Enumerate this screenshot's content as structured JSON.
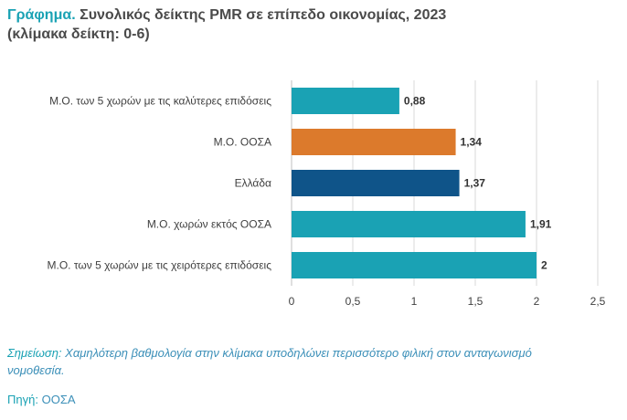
{
  "header": {
    "title_prefix": "Γράφημα.",
    "title_text": "Συνολικός δείκτης PMR σε επίπεδο οικονομίας, 2023",
    "subtitle": "(κλίμακα δείκτη: 0-6)"
  },
  "chart_data": {
    "type": "bar",
    "orientation": "horizontal",
    "categories": [
      "Μ.Ο. των 5 χωρών με τις καλύτερες επιδόσεις",
      "Μ.Ο. ΟΟΣΑ",
      "Ελλάδα",
      "Μ.Ο. χωρών εκτός ΟΟΣΑ",
      "Μ.Ο. των 5 χωρών με τις χειρότερες επιδόσεις"
    ],
    "values": [
      0.88,
      1.34,
      1.37,
      1.91,
      2
    ],
    "value_labels": [
      "0,88",
      "1,34",
      "1,37",
      "1,91",
      "2"
    ],
    "colors": [
      "#1aa2b4",
      "#dc7a2c",
      "#0f5489",
      "#1aa2b4",
      "#1aa2b4"
    ],
    "xlim": [
      0,
      2.5
    ],
    "xticks": [
      0,
      0.5,
      1,
      1.5,
      2,
      2.5
    ],
    "xtick_labels": [
      "0",
      "0,5",
      "1",
      "1,5",
      "2",
      "2,5"
    ],
    "grid": "vertical",
    "legend": "none"
  },
  "footer": {
    "note_label": "Σημείωση:",
    "note_text": "Χαμηλότερη βαθμολογία στην κλίμακα υποδηλώνει περισσότερο φιλική στον ανταγωνισμό νομοθεσία.",
    "source_label": "Πηγή:",
    "source_text": "ΟΟΣΑ"
  }
}
